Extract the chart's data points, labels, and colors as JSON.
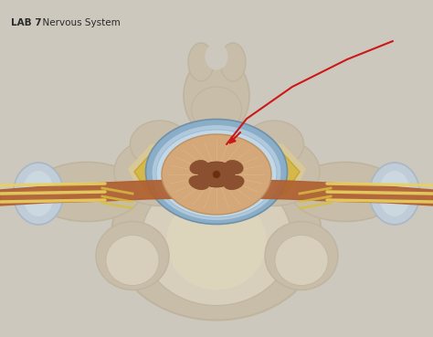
{
  "title_bold": "LAB 7",
  "title_normal": "  Nervous System",
  "background_color": "#cdc8be",
  "bone_color": "#c8bda8",
  "bone_light": "#d8cebc",
  "bone_mid": "#bfb49e",
  "bone_dark": "#a89880",
  "spinal_canal_bg": "#d8c898",
  "ligament_yellow": "#d4b84a",
  "ligament_yellow2": "#c8a830",
  "dura_blue": "#8aaec8",
  "dura_blue_light": "#b0c8dc",
  "arachnoid_light": "#c0d8e8",
  "cord_color": "#d4a878",
  "cord_light": "#e0bc98",
  "gray_matter": "#8b5030",
  "nerve_brown": "#b06030",
  "nerve_yellow": "#d8c040",
  "nerve_yellow2": "#e8d060",
  "facet_blue": "#a8b8c4",
  "facet_blue2": "#c0ccd8",
  "arrow_color": "#cc1818",
  "text_color": "#2a2a2a",
  "figsize": [
    4.74,
    3.69
  ],
  "dpi": 100
}
